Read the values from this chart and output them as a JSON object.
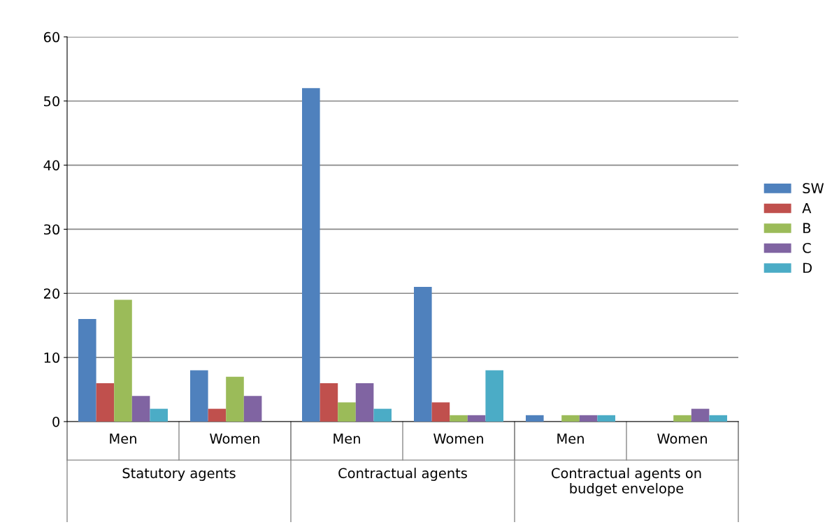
{
  "chart_data": {
    "type": "bar",
    "categories": [
      "Men",
      "Women",
      "Men",
      "Women",
      "Men",
      "Women"
    ],
    "series": [
      {
        "name": "SW",
        "color": "#4f81bd",
        "values": [
          16,
          8,
          52,
          21,
          1,
          0
        ]
      },
      {
        "name": "A",
        "color": "#c0504d",
        "values": [
          6,
          2,
          6,
          3,
          0,
          0
        ]
      },
      {
        "name": "B",
        "color": "#9bbb59",
        "values": [
          19,
          7,
          3,
          1,
          1,
          1
        ]
      },
      {
        "name": "C",
        "color": "#8064a2",
        "values": [
          4,
          4,
          6,
          1,
          1,
          2
        ]
      },
      {
        "name": "D",
        "color": "#4bacc6",
        "values": [
          2,
          0,
          2,
          8,
          1,
          1
        ]
      }
    ],
    "annotations": [
      "Statutory agents",
      "Contractual agents",
      "Contractual agents on\nbudget envelope"
    ],
    "ylim": [
      0,
      60
    ],
    "yticks": [
      0,
      10,
      20,
      30,
      40,
      50,
      60
    ],
    "grid": "y",
    "legend": "right"
  }
}
